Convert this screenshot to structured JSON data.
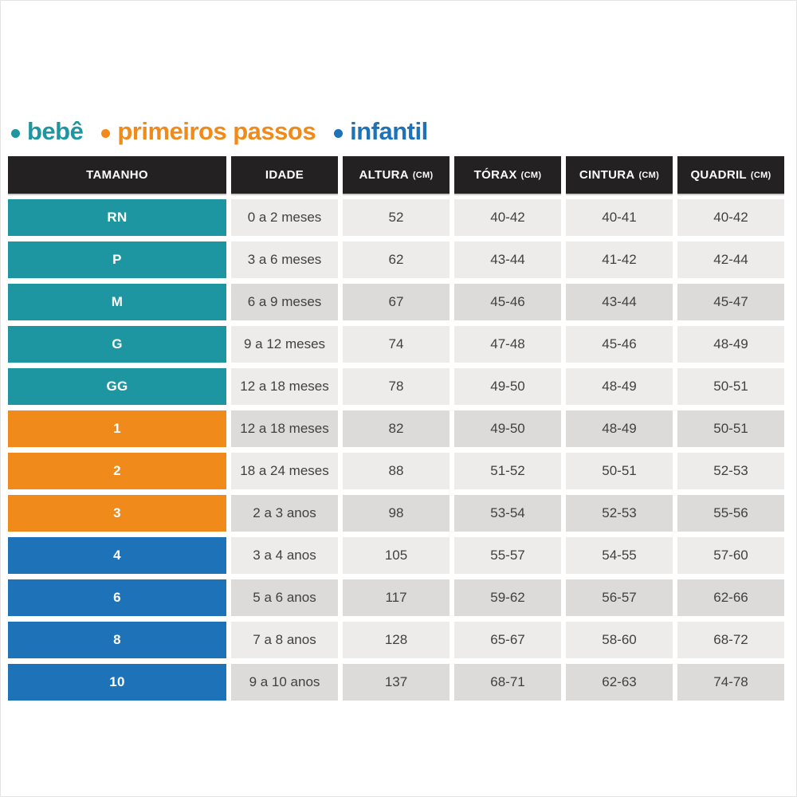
{
  "colors": {
    "bebe": "#1e96a2",
    "primeiros_passos": "#f08a1a",
    "infantil": "#1d72b8",
    "header_bg": "#242122",
    "header_text": "#ffffff",
    "row_light": "#edecea",
    "row_shaded": "#dcdbd9",
    "cell_text": "#414042",
    "size_text": "#ffffff"
  },
  "legend": {
    "items": [
      {
        "id": "bebe",
        "bullet_icon": "dot",
        "label": "bebê",
        "color": "#1e96a2"
      },
      {
        "id": "primeiros-passos",
        "bullet_icon": "dot",
        "label": "primeiros passos",
        "color": "#f08a1a"
      },
      {
        "id": "infantil",
        "bullet_icon": "dot",
        "label": "infantil",
        "color": "#1d72b8"
      }
    ]
  },
  "table": {
    "headers": [
      {
        "id": "tamanho",
        "label": "TAMANHO",
        "unit": ""
      },
      {
        "id": "idade",
        "label": "IDADE",
        "unit": ""
      },
      {
        "id": "altura",
        "label": "ALTURA",
        "unit": "(CM)"
      },
      {
        "id": "torax",
        "label": "TÓRAX",
        "unit": "(CM)"
      },
      {
        "id": "cintura",
        "label": "CINTURA",
        "unit": "(CM)"
      },
      {
        "id": "quadril",
        "label": "QUADRIL",
        "unit": "(CM)"
      }
    ],
    "rows": [
      {
        "size": "RN",
        "group": "bebe",
        "idade": "0 a 2 meses",
        "altura": "52",
        "torax": "40-42",
        "cintura": "40-41",
        "quadril": "40-42",
        "shaded": false
      },
      {
        "size": "P",
        "group": "bebe",
        "idade": "3 a 6 meses",
        "altura": "62",
        "torax": "43-44",
        "cintura": "41-42",
        "quadril": "42-44",
        "shaded": false
      },
      {
        "size": "M",
        "group": "bebe",
        "idade": "6 a 9 meses",
        "altura": "67",
        "torax": "45-46",
        "cintura": "43-44",
        "quadril": "45-47",
        "shaded": true
      },
      {
        "size": "G",
        "group": "bebe",
        "idade": "9 a 12 meses",
        "altura": "74",
        "torax": "47-48",
        "cintura": "45-46",
        "quadril": "48-49",
        "shaded": false
      },
      {
        "size": "GG",
        "group": "bebe",
        "idade": "12 a 18 meses",
        "altura": "78",
        "torax": "49-50",
        "cintura": "48-49",
        "quadril": "50-51",
        "shaded": false
      },
      {
        "size": "1",
        "group": "primeiros_passos",
        "idade": "12 a 18 meses",
        "altura": "82",
        "torax": "49-50",
        "cintura": "48-49",
        "quadril": "50-51",
        "shaded": true
      },
      {
        "size": "2",
        "group": "primeiros_passos",
        "idade": "18 a 24 meses",
        "altura": "88",
        "torax": "51-52",
        "cintura": "50-51",
        "quadril": "52-53",
        "shaded": false
      },
      {
        "size": "3",
        "group": "primeiros_passos",
        "idade": "2 a 3 anos",
        "altura": "98",
        "torax": "53-54",
        "cintura": "52-53",
        "quadril": "55-56",
        "shaded": true
      },
      {
        "size": "4",
        "group": "infantil",
        "idade": "3 a 4 anos",
        "altura": "105",
        "torax": "55-57",
        "cintura": "54-55",
        "quadril": "57-60",
        "shaded": false
      },
      {
        "size": "6",
        "group": "infantil",
        "idade": "5 a 6 anos",
        "altura": "117",
        "torax": "59-62",
        "cintura": "56-57",
        "quadril": "62-66",
        "shaded": true
      },
      {
        "size": "8",
        "group": "infantil",
        "idade": "7 a 8 anos",
        "altura": "128",
        "torax": "65-67",
        "cintura": "58-60",
        "quadril": "68-72",
        "shaded": false
      },
      {
        "size": "10",
        "group": "infantil",
        "idade": "9 a 10 anos",
        "altura": "137",
        "torax": "68-71",
        "cintura": "62-63",
        "quadril": "74-78",
        "shaded": true
      }
    ]
  },
  "chart_data": {
    "type": "table",
    "title": "",
    "legend": [
      "bebê",
      "primeiros passos",
      "infantil"
    ],
    "columns": [
      "TAMANHO",
      "IDADE",
      "ALTURA (CM)",
      "TÓRAX (CM)",
      "CINTURA (CM)",
      "QUADRIL (CM)"
    ],
    "rows": [
      [
        "RN",
        "0 a 2 meses",
        "52",
        "40-42",
        "40-41",
        "40-42"
      ],
      [
        "P",
        "3 a 6 meses",
        "62",
        "43-44",
        "41-42",
        "42-44"
      ],
      [
        "M",
        "6 a 9 meses",
        "67",
        "45-46",
        "43-44",
        "45-47"
      ],
      [
        "G",
        "9 a 12 meses",
        "74",
        "47-48",
        "45-46",
        "48-49"
      ],
      [
        "GG",
        "12 a 18 meses",
        "78",
        "49-50",
        "48-49",
        "50-51"
      ],
      [
        "1",
        "12 a 18 meses",
        "82",
        "49-50",
        "48-49",
        "50-51"
      ],
      [
        "2",
        "18 a 24 meses",
        "88",
        "51-52",
        "50-51",
        "52-53"
      ],
      [
        "3",
        "2 a 3 anos",
        "98",
        "53-54",
        "52-53",
        "55-56"
      ],
      [
        "4",
        "3 a 4 anos",
        "105",
        "55-57",
        "54-55",
        "57-60"
      ],
      [
        "6",
        "5 a 6 anos",
        "117",
        "59-62",
        "56-57",
        "62-66"
      ],
      [
        "8",
        "7 a 8 anos",
        "128",
        "65-67",
        "58-60",
        "68-72"
      ],
      [
        "10",
        "9 a 10 anos",
        "137",
        "68-71",
        "62-63",
        "74-78"
      ]
    ]
  }
}
